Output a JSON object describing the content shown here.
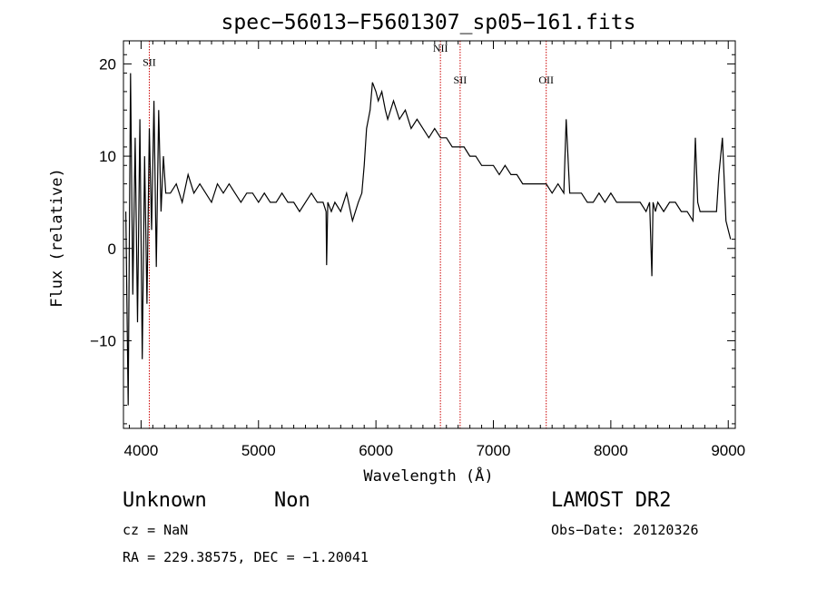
{
  "chart_data": {
    "type": "line",
    "title": "spec−56013−F5601307_sp05−161.fits",
    "xlabel": "Wavelength (Å)",
    "ylabel": "Flux (relative)",
    "xlim": [
      3850,
      9060
    ],
    "ylim": [
      -19.5,
      22.5
    ],
    "x_ticks": [
      4000,
      5000,
      6000,
      7000,
      8000,
      9000
    ],
    "x_tick_labels": [
      "4000",
      "5000",
      "6000",
      "7000",
      "8000",
      "9000"
    ],
    "y_ticks": [
      -10,
      0,
      10,
      20
    ],
    "y_tick_labels": [
      "−10",
      "0",
      "10",
      "20"
    ],
    "grid": false,
    "line_color": "#000000",
    "marker_color": "#cc0000",
    "lines": [
      {
        "label": "SII",
        "x": 4070,
        "label_y": 19.8
      },
      {
        "label": "NII",
        "x": 6549,
        "label_y": 21.3
      },
      {
        "label": "SII",
        "x": 6717,
        "label_y": 17.9
      },
      {
        "label": "OII",
        "x": 7450,
        "label_y": 17.9
      }
    ],
    "series": [
      {
        "x": [
          3870,
          3890,
          3910,
          3930,
          3950,
          3970,
          3990,
          4010,
          4030,
          4050,
          4070,
          4090,
          4110,
          4130,
          4150,
          4170,
          4190,
          4210,
          4250,
          4300,
          4350,
          4400,
          4450,
          4500,
          4550,
          4600,
          4650,
          4700,
          4750,
          4800,
          4850,
          4900,
          4950,
          5000,
          5050,
          5100,
          5150,
          5200,
          5250,
          5300,
          5350,
          5400,
          5450,
          5500,
          5550,
          5575,
          5580,
          5590,
          5620,
          5650,
          5700,
          5750,
          5800,
          5850,
          5880,
          5900,
          5920,
          5950,
          5970,
          6000,
          6020,
          6050,
          6080,
          6100,
          6150,
          6200,
          6250,
          6300,
          6350,
          6400,
          6450,
          6500,
          6550,
          6600,
          6650,
          6700,
          6750,
          6800,
          6850,
          6900,
          6950,
          7000,
          7050,
          7100,
          7150,
          7200,
          7250,
          7300,
          7350,
          7400,
          7450,
          7500,
          7550,
          7600,
          7620,
          7650,
          7700,
          7750,
          7800,
          7850,
          7900,
          7950,
          8000,
          8050,
          8100,
          8150,
          8200,
          8250,
          8300,
          8330,
          8350,
          8360,
          8380,
          8400,
          8450,
          8500,
          8550,
          8600,
          8650,
          8700,
          8720,
          8740,
          8760,
          8800,
          8850,
          8900,
          8920,
          8950,
          8980,
          9000,
          9020
        ],
        "y": [
          4,
          -17,
          19,
          -5,
          12,
          -8,
          14,
          -12,
          10,
          -6,
          13,
          2,
          16,
          -2,
          15,
          4,
          10,
          6,
          6,
          7,
          5,
          8,
          6,
          7,
          6,
          5,
          7,
          6,
          7,
          6,
          5,
          6,
          6,
          5,
          6,
          5,
          5,
          6,
          5,
          5,
          4,
          5,
          6,
          5,
          5,
          4,
          -1.8,
          5,
          4,
          5,
          4,
          6,
          3,
          5,
          6,
          9,
          13,
          15,
          18,
          17,
          16,
          17,
          15,
          14,
          16,
          14,
          15,
          13,
          14,
          13,
          12,
          13,
          12,
          12,
          11,
          11,
          11,
          10,
          10,
          9,
          9,
          9,
          8,
          9,
          8,
          8,
          7,
          7,
          7,
          7,
          7,
          6,
          7,
          6,
          14,
          6,
          6,
          6,
          5,
          5,
          6,
          5,
          6,
          5,
          5,
          5,
          5,
          5,
          4,
          5,
          -3,
          5,
          4,
          5,
          4,
          5,
          5,
          4,
          4,
          3,
          12,
          5,
          4,
          4,
          4,
          4,
          8,
          12,
          3,
          2,
          1
        ]
      }
    ]
  },
  "footer": {
    "class_label": "Unknown",
    "subclass_label": "Non",
    "survey": "LAMOST DR2",
    "cz": "cz = NaN",
    "obs_date": "Obs−Date: 20120326",
    "coords": "RA = 229.38575, DEC =  −1.20041"
  }
}
